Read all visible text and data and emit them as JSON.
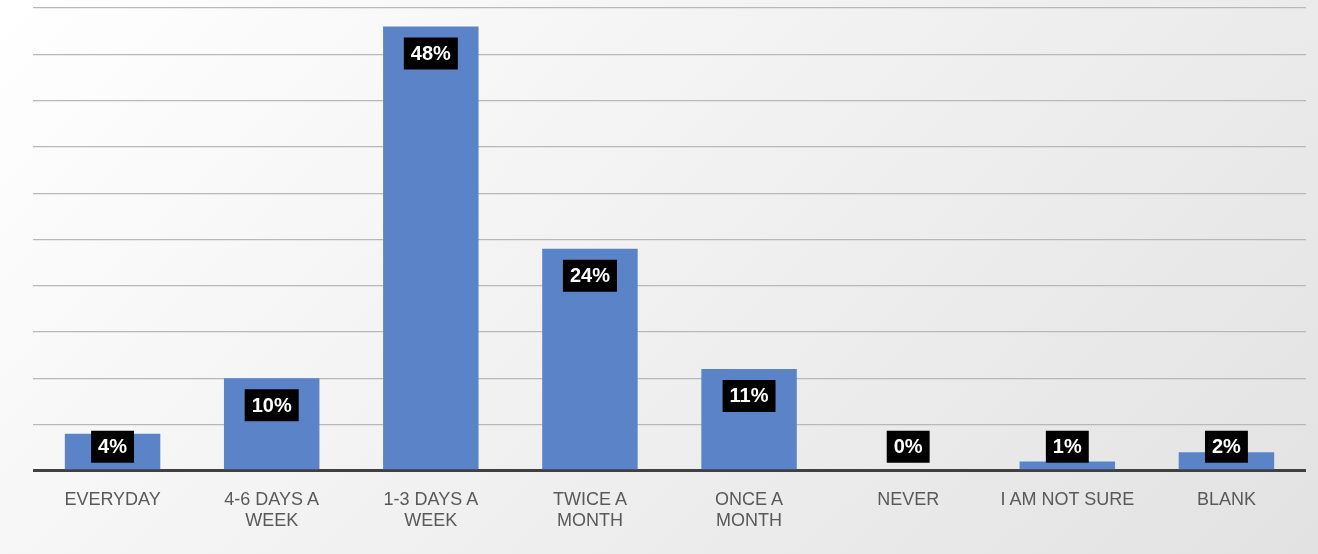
{
  "chart_data": {
    "type": "bar",
    "categories": [
      "EVERYDAY",
      "4-6 DAYS A WEEK",
      "1-3 DAYS A WEEK",
      "TWICE A MONTH",
      "ONCE A MONTH",
      "NEVER",
      "I AM NOT SURE",
      "BLANK"
    ],
    "values": [
      4,
      10,
      48,
      24,
      11,
      0,
      1,
      2
    ],
    "value_labels": [
      "4%",
      "10%",
      "48%",
      "24%",
      "11%",
      "0%",
      "1%",
      "2%"
    ],
    "color": "#5b84c8",
    "grid": "y",
    "legend": false,
    "tick_labels": "x"
  }
}
